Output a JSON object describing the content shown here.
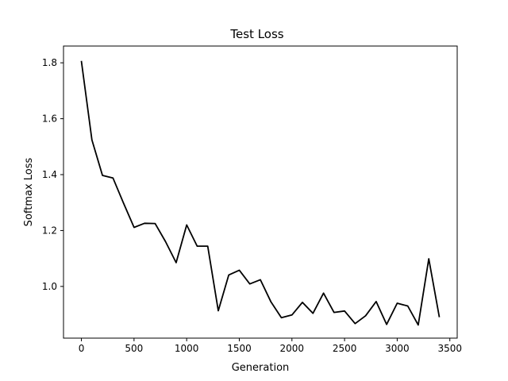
{
  "chart_data": {
    "type": "line",
    "title": "Test Loss",
    "xlabel": "Generation",
    "ylabel": "Softmax Loss",
    "xlim": [
      -170,
      3570
    ],
    "ylim": [
      0.815,
      1.86
    ],
    "x_ticks": [
      0,
      500,
      1000,
      1500,
      2000,
      2500,
      3000,
      3500
    ],
    "y_ticks": [
      1.0,
      1.2,
      1.4,
      1.6,
      1.8
    ],
    "x_tick_labels": [
      "0",
      "500",
      "1000",
      "1500",
      "2000",
      "2500",
      "3000",
      "3500"
    ],
    "y_tick_labels": [
      "1.0",
      "1.2",
      "1.4",
      "1.6",
      "1.8"
    ],
    "grid": false,
    "line_color": "#000000",
    "series": [
      {
        "x": [
          0,
          100,
          200,
          300,
          400,
          500,
          600,
          700,
          800,
          900,
          1000,
          1100,
          1200,
          1300,
          1400,
          1500,
          1600,
          1700,
          1800,
          1900,
          2000,
          2100,
          2200,
          2300,
          2400,
          2500,
          2600,
          2700,
          2800,
          2900,
          3000,
          3100,
          3200,
          3300,
          3400
        ],
        "values": [
          1.807,
          1.524,
          1.397,
          1.388,
          1.298,
          1.211,
          1.226,
          1.225,
          1.16,
          1.085,
          1.22,
          1.144,
          1.144,
          0.913,
          1.041,
          1.058,
          1.009,
          1.024,
          0.945,
          0.888,
          0.898,
          0.943,
          0.904,
          0.976,
          0.907,
          0.912,
          0.867,
          0.895,
          0.946,
          0.864,
          0.94,
          0.93,
          0.862,
          1.099,
          0.89
        ]
      }
    ]
  }
}
